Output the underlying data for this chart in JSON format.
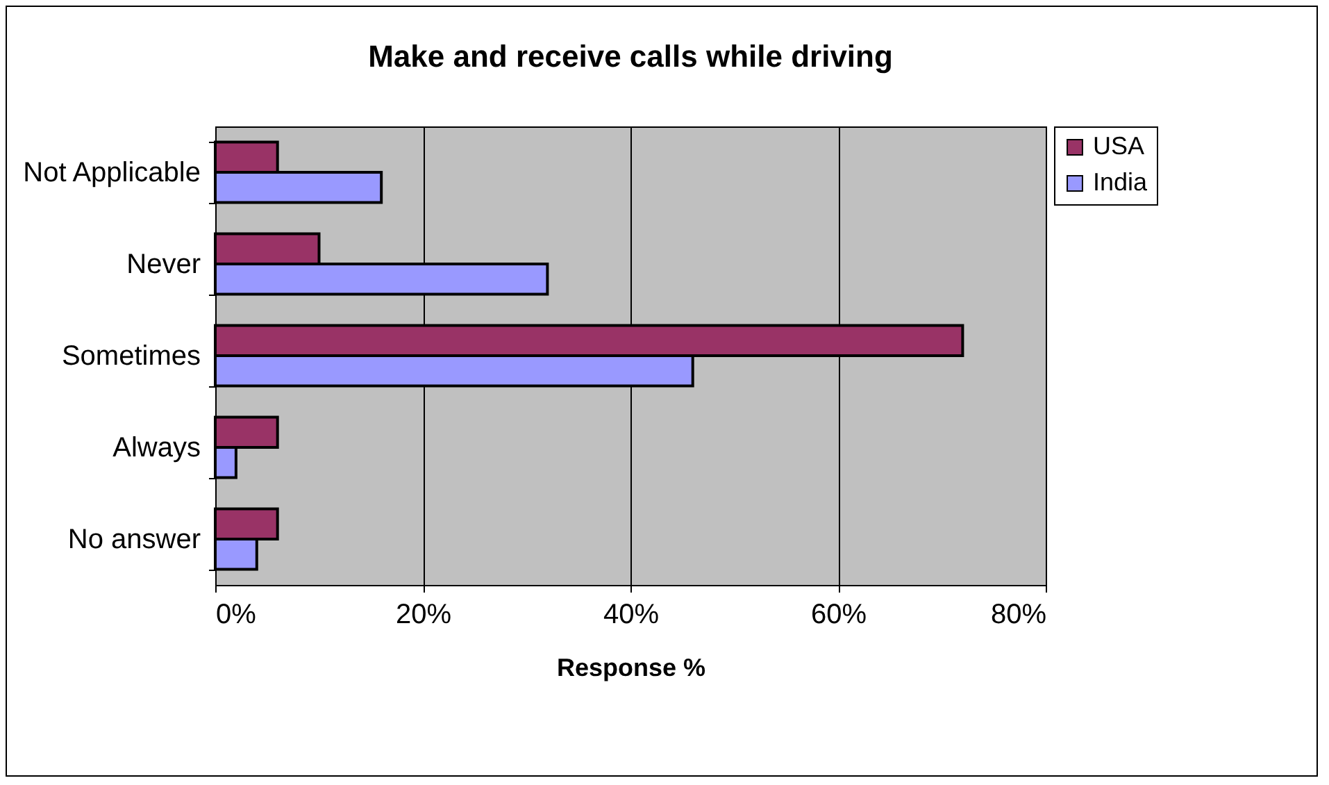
{
  "chart_data": {
    "type": "bar",
    "orientation": "horizontal",
    "title": "Make and receive calls while driving",
    "xlabel": "Response %",
    "categories": [
      "Not Applicable",
      "Never",
      "Sometimes",
      "Always",
      "No answer"
    ],
    "series": [
      {
        "name": "USA",
        "color": "#993366",
        "values": [
          6,
          10,
          72,
          6,
          6
        ]
      },
      {
        "name": "India",
        "color": "#9999ff",
        "values": [
          16,
          32,
          46,
          2,
          4
        ]
      }
    ],
    "xlim": [
      0,
      80
    ],
    "xticks": [
      {
        "value": 0,
        "label": "0%"
      },
      {
        "value": 20,
        "label": "20%"
      },
      {
        "value": 40,
        "label": "40%"
      },
      {
        "value": 60,
        "label": "60%"
      },
      {
        "value": 80,
        "label": "80%"
      }
    ],
    "grid": "x",
    "legend": "right"
  }
}
